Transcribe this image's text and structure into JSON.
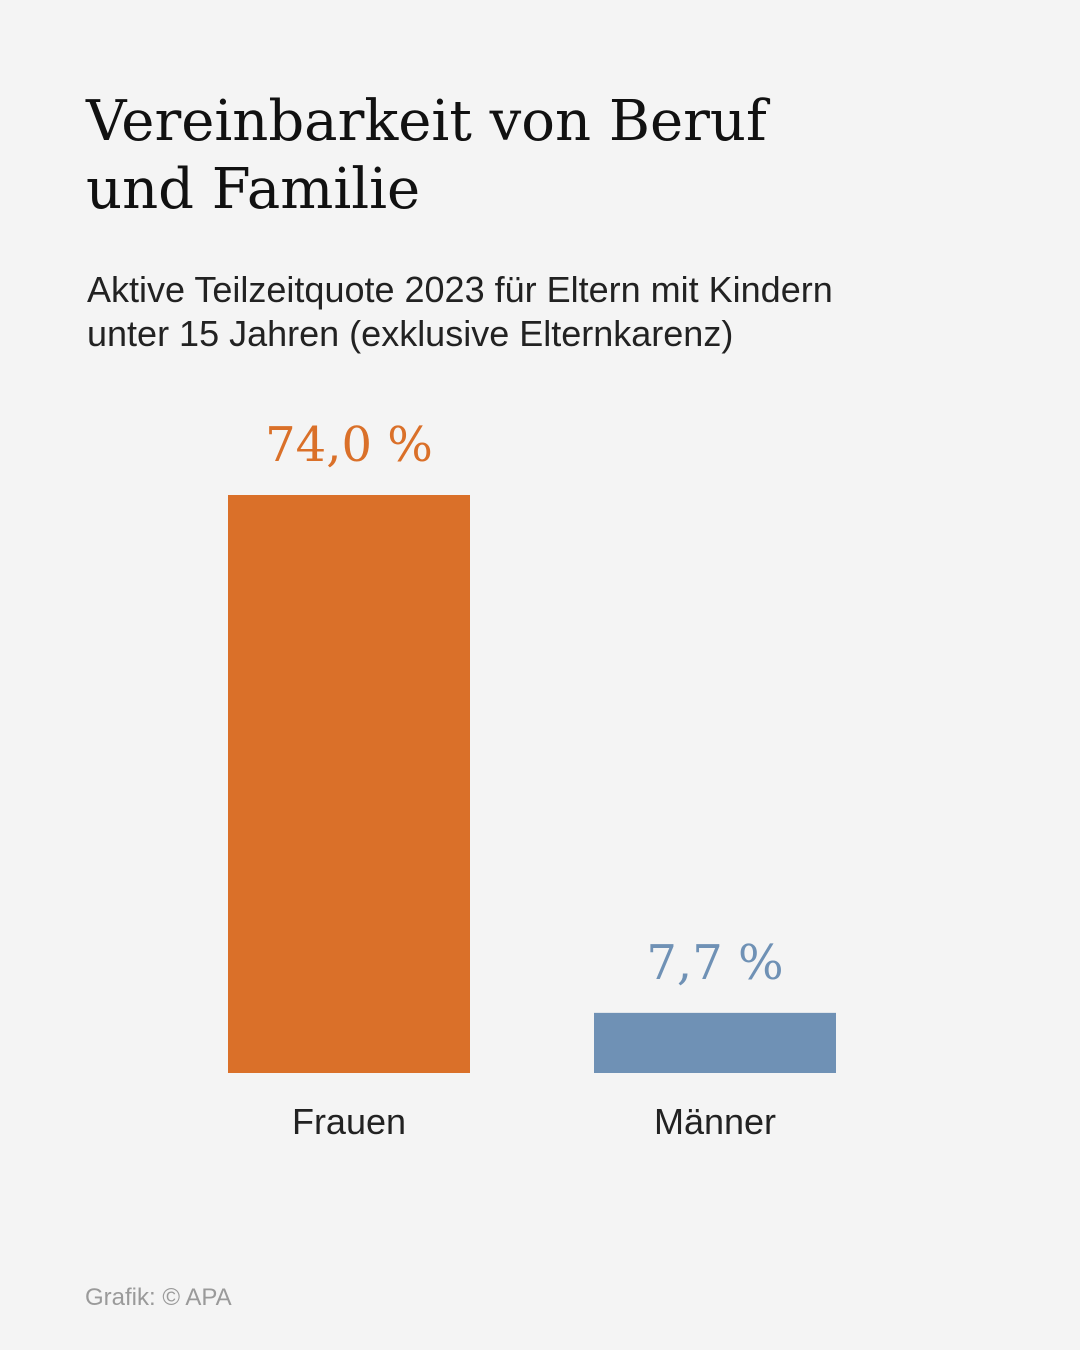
{
  "title_lines": [
    "Vereinbarkeit von Beruf",
    "und Familie"
  ],
  "subtitle_lines": [
    "Aktive Teilzeitquote 2023 für Eltern mit Kindern",
    "unter 15 Jahren (exklusive Elternkarenz)"
  ],
  "source": "Grafik: © APA",
  "colors": {
    "background": "#f4f4f4",
    "frauen": "#da7029",
    "maenner": "#6f91b5"
  },
  "chart_data": {
    "type": "bar",
    "categories": [
      "Frauen",
      "Männer"
    ],
    "values": [
      74.0,
      7.7
    ],
    "value_labels": [
      "74,0 %",
      "7,7 %"
    ],
    "bar_colors": [
      "#da7029",
      "#6f91b5"
    ],
    "title": "Vereinbarkeit von Beruf und Familie",
    "subtitle": "Aktive Teilzeitquote 2023 für Eltern mit Kindern unter 15 Jahren (exklusive Elternkarenz)",
    "xlabel": "",
    "ylabel": "",
    "ylim": [
      0,
      74.0
    ],
    "grid": false,
    "legend": "none"
  }
}
